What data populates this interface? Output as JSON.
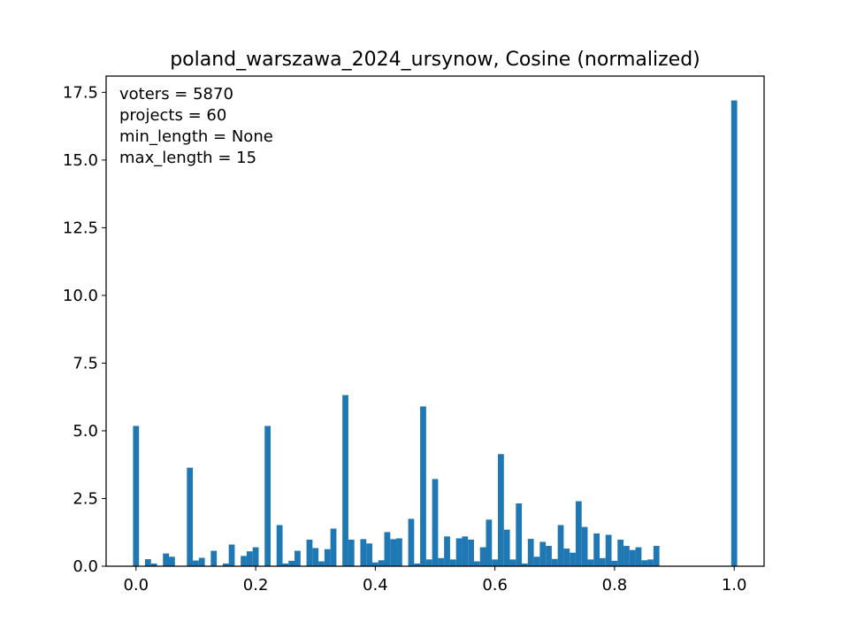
{
  "chart_data": {
    "type": "bar",
    "title": "poland_warszawa_2024_ursynow, Cosine (normalized)",
    "xlabel": "",
    "ylabel": "",
    "xlim": [
      -0.05,
      1.05
    ],
    "ylim": [
      0,
      18.1
    ],
    "bin_width": 0.01,
    "grid": false,
    "bar_color": "#1f77b4",
    "x_ticks": [
      {
        "value": 0.0,
        "label": "0.0"
      },
      {
        "value": 0.2,
        "label": "0.2"
      },
      {
        "value": 0.4,
        "label": "0.4"
      },
      {
        "value": 0.6,
        "label": "0.6"
      },
      {
        "value": 0.8,
        "label": "0.8"
      },
      {
        "value": 1.0,
        "label": "1.0"
      }
    ],
    "y_ticks": [
      {
        "value": 0.0,
        "label": "0.0"
      },
      {
        "value": 2.5,
        "label": "2.5"
      },
      {
        "value": 5.0,
        "label": "5.0"
      },
      {
        "value": 7.5,
        "label": "7.5"
      },
      {
        "value": 10.0,
        "label": "10.0"
      },
      {
        "value": 12.5,
        "label": "12.5"
      },
      {
        "value": 15.0,
        "label": "15.0"
      },
      {
        "value": 17.5,
        "label": "17.5"
      }
    ],
    "annotations": [
      "voters = 5870",
      "projects = 60",
      "min_length = None",
      "max_length = 15"
    ],
    "bars": [
      {
        "x": 0.0,
        "y": 5.18
      },
      {
        "x": 0.02,
        "y": 0.26
      },
      {
        "x": 0.03,
        "y": 0.1
      },
      {
        "x": 0.05,
        "y": 0.47
      },
      {
        "x": 0.06,
        "y": 0.35
      },
      {
        "x": 0.09,
        "y": 3.64
      },
      {
        "x": 0.1,
        "y": 0.21
      },
      {
        "x": 0.11,
        "y": 0.31
      },
      {
        "x": 0.13,
        "y": 0.57
      },
      {
        "x": 0.15,
        "y": 0.1
      },
      {
        "x": 0.16,
        "y": 0.8
      },
      {
        "x": 0.18,
        "y": 0.38
      },
      {
        "x": 0.19,
        "y": 0.55
      },
      {
        "x": 0.2,
        "y": 0.7
      },
      {
        "x": 0.22,
        "y": 5.18
      },
      {
        "x": 0.24,
        "y": 1.52
      },
      {
        "x": 0.25,
        "y": 0.1
      },
      {
        "x": 0.26,
        "y": 0.2
      },
      {
        "x": 0.27,
        "y": 0.57
      },
      {
        "x": 0.29,
        "y": 0.98
      },
      {
        "x": 0.3,
        "y": 0.67
      },
      {
        "x": 0.31,
        "y": 0.18
      },
      {
        "x": 0.32,
        "y": 0.63
      },
      {
        "x": 0.33,
        "y": 1.39
      },
      {
        "x": 0.35,
        "y": 6.32
      },
      {
        "x": 0.36,
        "y": 0.98
      },
      {
        "x": 0.38,
        "y": 1.0
      },
      {
        "x": 0.39,
        "y": 0.84
      },
      {
        "x": 0.4,
        "y": 0.14
      },
      {
        "x": 0.41,
        "y": 0.22
      },
      {
        "x": 0.42,
        "y": 1.26
      },
      {
        "x": 0.43,
        "y": 1.0
      },
      {
        "x": 0.44,
        "y": 1.03
      },
      {
        "x": 0.46,
        "y": 1.75
      },
      {
        "x": 0.47,
        "y": 0.1
      },
      {
        "x": 0.48,
        "y": 5.9
      },
      {
        "x": 0.49,
        "y": 0.25
      },
      {
        "x": 0.5,
        "y": 3.22
      },
      {
        "x": 0.51,
        "y": 0.3
      },
      {
        "x": 0.52,
        "y": 1.1
      },
      {
        "x": 0.53,
        "y": 0.25
      },
      {
        "x": 0.54,
        "y": 1.03
      },
      {
        "x": 0.55,
        "y": 1.1
      },
      {
        "x": 0.56,
        "y": 0.98
      },
      {
        "x": 0.57,
        "y": 0.18
      },
      {
        "x": 0.58,
        "y": 0.7
      },
      {
        "x": 0.59,
        "y": 1.72
      },
      {
        "x": 0.6,
        "y": 0.25
      },
      {
        "x": 0.61,
        "y": 4.14
      },
      {
        "x": 0.62,
        "y": 1.35
      },
      {
        "x": 0.63,
        "y": 0.25
      },
      {
        "x": 0.64,
        "y": 2.32
      },
      {
        "x": 0.65,
        "y": 0.1
      },
      {
        "x": 0.66,
        "y": 1.01
      },
      {
        "x": 0.67,
        "y": 0.35
      },
      {
        "x": 0.68,
        "y": 0.9
      },
      {
        "x": 0.69,
        "y": 0.75
      },
      {
        "x": 0.7,
        "y": 0.27
      },
      {
        "x": 0.71,
        "y": 1.52
      },
      {
        "x": 0.72,
        "y": 0.65
      },
      {
        "x": 0.73,
        "y": 0.5
      },
      {
        "x": 0.74,
        "y": 2.4
      },
      {
        "x": 0.75,
        "y": 1.45
      },
      {
        "x": 0.76,
        "y": 0.25
      },
      {
        "x": 0.77,
        "y": 1.21
      },
      {
        "x": 0.78,
        "y": 0.3
      },
      {
        "x": 0.79,
        "y": 1.16
      },
      {
        "x": 0.8,
        "y": 0.2
      },
      {
        "x": 0.81,
        "y": 0.98
      },
      {
        "x": 0.82,
        "y": 0.75
      },
      {
        "x": 0.83,
        "y": 0.6
      },
      {
        "x": 0.84,
        "y": 0.7
      },
      {
        "x": 0.85,
        "y": 0.22
      },
      {
        "x": 0.86,
        "y": 0.25
      },
      {
        "x": 0.87,
        "y": 0.75
      },
      {
        "x": 1.0,
        "y": 17.2
      }
    ]
  }
}
